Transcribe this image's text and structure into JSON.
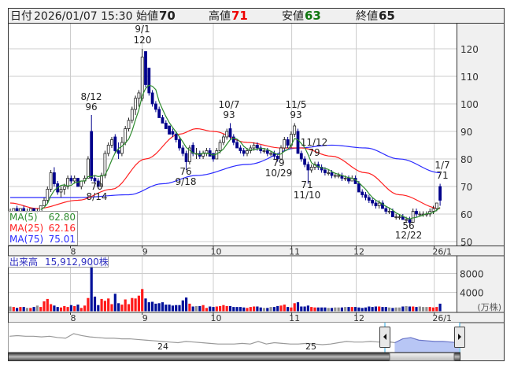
{
  "header": {
    "date_label": "日付",
    "datetime": "2026/01/07 15:30",
    "open_label": "始値",
    "open": "70",
    "high_label": "高値",
    "high": "71",
    "low_label": "安値",
    "low": "63",
    "close_label": "終値",
    "close": "65"
  },
  "colors": {
    "up_candle_fill": "#ffffff",
    "down_candle": "#00008b",
    "ma5": "#2e8b2e",
    "ma25": "#ff2020",
    "ma75": "#2a2aff",
    "volume_up": "#ff1a1a",
    "volume_down": "#00109a",
    "volume_flat": "#909090",
    "high_value": "#ee0000",
    "low_value": "#117711",
    "panel_bg": "#f0f0f0",
    "grid": "#cccccc"
  },
  "ma_legend": [
    {
      "label": "MA(5)",
      "value": "62.80"
    },
    {
      "label": "MA(25)",
      "value": "62.16"
    },
    {
      "label": "MA(75)",
      "value": "75.01"
    }
  ],
  "volume_panel": {
    "label": "出来高",
    "value": "15,912,900株",
    "unit": "(万株)"
  },
  "chart_data": {
    "type": "candlestick",
    "price_axis": {
      "ticks": [
        "120",
        "110",
        "100",
        "90",
        "80",
        "70",
        "60",
        "50"
      ],
      "range": [
        50,
        124
      ]
    },
    "date_axis": {
      "ticks": [
        "8",
        "9",
        "10",
        "11",
        "12",
        "26/1"
      ]
    },
    "volume_axis": {
      "ticks": [
        "8000",
        "4000"
      ],
      "range": [
        0,
        11500
      ],
      "unit": "万株"
    },
    "annotations": [
      {
        "date": "9/1",
        "value": "120",
        "kind": "high"
      },
      {
        "date": "8/12",
        "value": "96",
        "kind": "high"
      },
      {
        "date": "10/7",
        "value": "93",
        "kind": "high"
      },
      {
        "date": "11/5",
        "value": "93",
        "kind": "high"
      },
      {
        "date": "11/12",
        "value": "79",
        "kind": "high"
      },
      {
        "date": "1/7",
        "value": "71",
        "kind": "high"
      },
      {
        "date": "8/14",
        "value": "70",
        "kind": "low"
      },
      {
        "date": "9/18",
        "value": "76",
        "kind": "low"
      },
      {
        "date": "10/29",
        "value": "79",
        "kind": "low"
      },
      {
        "date": "11/10",
        "value": "71",
        "kind": "low"
      },
      {
        "date": "12/22",
        "value": "56",
        "kind": "low"
      }
    ],
    "candles_ohlc": [
      [
        61,
        62,
        60,
        61
      ],
      [
        61,
        62,
        61,
        62
      ],
      [
        62,
        63,
        61,
        61
      ],
      [
        61,
        62,
        61,
        62
      ],
      [
        62,
        63,
        61,
        61
      ],
      [
        61,
        62,
        60,
        61
      ],
      [
        61,
        62,
        61,
        62
      ],
      [
        62,
        62,
        61,
        61
      ],
      [
        61,
        62,
        60,
        61
      ],
      [
        61,
        63,
        61,
        63
      ],
      [
        63,
        66,
        63,
        65
      ],
      [
        65,
        70,
        64,
        69
      ],
      [
        69,
        76,
        68,
        75
      ],
      [
        75,
        77,
        70,
        71
      ],
      [
        71,
        72,
        67,
        68
      ],
      [
        68,
        70,
        66,
        69
      ],
      [
        69,
        71,
        67,
        70
      ],
      [
        70,
        74,
        69,
        73
      ],
      [
        73,
        74,
        71,
        72
      ],
      [
        72,
        74,
        71,
        73
      ],
      [
        73,
        73,
        70,
        70
      ],
      [
        70,
        72,
        69,
        72
      ],
      [
        72,
        74,
        71,
        73
      ],
      [
        73,
        81,
        73,
        80
      ],
      [
        90,
        96,
        72,
        73
      ],
      [
        73,
        74,
        71,
        72
      ],
      [
        72,
        73,
        70,
        70
      ],
      [
        70,
        75,
        70,
        74
      ],
      [
        74,
        83,
        73,
        82
      ],
      [
        82,
        86,
        81,
        85
      ],
      [
        85,
        88,
        84,
        87
      ],
      [
        88,
        89,
        82,
        83
      ],
      [
        83,
        86,
        80,
        82
      ],
      [
        82,
        88,
        81,
        86
      ],
      [
        86,
        92,
        85,
        91
      ],
      [
        91,
        95,
        90,
        94
      ],
      [
        94,
        99,
        93,
        98
      ],
      [
        98,
        103,
        96,
        102
      ],
      [
        102,
        105,
        99,
        104
      ],
      [
        102,
        120,
        101,
        117
      ],
      [
        119,
        119,
        106,
        107
      ],
      [
        113,
        113,
        103,
        104
      ],
      [
        104,
        105,
        99,
        100
      ],
      [
        100,
        101,
        97,
        98
      ],
      [
        98,
        99,
        95,
        95
      ],
      [
        95,
        96,
        93,
        93
      ],
      [
        93,
        94,
        91,
        91
      ],
      [
        92,
        92,
        89,
        89
      ],
      [
        90,
        91,
        88,
        89
      ],
      [
        89,
        90,
        86,
        87
      ],
      [
        87,
        88,
        83,
        84
      ],
      [
        84,
        85,
        81,
        82
      ],
      [
        82,
        83,
        76,
        79
      ],
      [
        79,
        85,
        78,
        84
      ],
      [
        85,
        86,
        81,
        82
      ],
      [
        82,
        84,
        80,
        82
      ],
      [
        82,
        83,
        80,
        81
      ],
      [
        81,
        83,
        80,
        82
      ],
      [
        82,
        84,
        81,
        83
      ],
      [
        83,
        84,
        81,
        81
      ],
      [
        82,
        82,
        79,
        80
      ],
      [
        80,
        84,
        80,
        83
      ],
      [
        83,
        87,
        82,
        86
      ],
      [
        86,
        89,
        85,
        88
      ],
      [
        88,
        91,
        87,
        90
      ],
      [
        91,
        93,
        87,
        88
      ],
      [
        88,
        89,
        85,
        86
      ],
      [
        86,
        87,
        84,
        84
      ],
      [
        84,
        85,
        82,
        83
      ],
      [
        83,
        84,
        81,
        82
      ],
      [
        82,
        84,
        81,
        83
      ],
      [
        83,
        85,
        82,
        84
      ],
      [
        84,
        86,
        83,
        85
      ],
      [
        85,
        86,
        83,
        84
      ],
      [
        84,
        85,
        82,
        83
      ],
      [
        83,
        84,
        82,
        83
      ],
      [
        83,
        84,
        81,
        82
      ],
      [
        82,
        83,
        81,
        82
      ],
      [
        82,
        83,
        80,
        81
      ],
      [
        81,
        82,
        79,
        80
      ],
      [
        80,
        85,
        80,
        84
      ],
      [
        84,
        88,
        83,
        87
      ],
      [
        87,
        88,
        84,
        85
      ],
      [
        85,
        90,
        84,
        89
      ],
      [
        89,
        93,
        88,
        92
      ],
      [
        90,
        91,
        82,
        82
      ],
      [
        82,
        83,
        79,
        80
      ],
      [
        80,
        81,
        77,
        78
      ],
      [
        78,
        79,
        71,
        76
      ],
      [
        76,
        78,
        75,
        77
      ],
      [
        77,
        79,
        76,
        78
      ],
      [
        78,
        79,
        76,
        77
      ],
      [
        77,
        78,
        75,
        76
      ],
      [
        76,
        77,
        74,
        75
      ],
      [
        75,
        76,
        74,
        75
      ],
      [
        75,
        76,
        73,
        74
      ],
      [
        74,
        75,
        73,
        74
      ],
      [
        74,
        75,
        73,
        74
      ],
      [
        74,
        75,
        72,
        73
      ],
      [
        73,
        74,
        72,
        73
      ],
      [
        73,
        74,
        71,
        72
      ],
      [
        72,
        74,
        72,
        73
      ],
      [
        73,
        74,
        71,
        71
      ],
      [
        71,
        72,
        68,
        68
      ],
      [
        68,
        69,
        66,
        67
      ],
      [
        67,
        68,
        65,
        66
      ],
      [
        66,
        67,
        64,
        65
      ],
      [
        65,
        66,
        63,
        64
      ],
      [
        64,
        65,
        62,
        63
      ],
      [
        63,
        65,
        62,
        64
      ],
      [
        64,
        65,
        62,
        62
      ],
      [
        62,
        63,
        60,
        61
      ],
      [
        61,
        62,
        60,
        61
      ],
      [
        61,
        62,
        59,
        59
      ],
      [
        59,
        60,
        58,
        59
      ],
      [
        59,
        60,
        58,
        59
      ],
      [
        59,
        60,
        58,
        58
      ],
      [
        58,
        59,
        57,
        58
      ],
      [
        58,
        59,
        56,
        57
      ],
      [
        57,
        62,
        57,
        61
      ],
      [
        61,
        62,
        59,
        60
      ],
      [
        60,
        61,
        59,
        60
      ],
      [
        60,
        61,
        59,
        60
      ],
      [
        60,
        61,
        59,
        60
      ],
      [
        60,
        62,
        59,
        61
      ],
      [
        61,
        63,
        60,
        62
      ],
      [
        62,
        64,
        61,
        64
      ],
      [
        70,
        71,
        63,
        65
      ]
    ],
    "ma25_points": [
      [
        0,
        64
      ],
      [
        8,
        62
      ],
      [
        20,
        65
      ],
      [
        30,
        69
      ],
      [
        40,
        80
      ],
      [
        50,
        89
      ],
      [
        55,
        91
      ],
      [
        60,
        90
      ],
      [
        70,
        86
      ],
      [
        80,
        84
      ],
      [
        86,
        84
      ],
      [
        95,
        81
      ],
      [
        105,
        75
      ],
      [
        115,
        67
      ],
      [
        127,
        62
      ]
    ],
    "ma75_points": [
      [
        0,
        66
      ],
      [
        20,
        66
      ],
      [
        35,
        67
      ],
      [
        45,
        71
      ],
      [
        55,
        74
      ],
      [
        70,
        78
      ],
      [
        85,
        84
      ],
      [
        95,
        85
      ],
      [
        105,
        84
      ],
      [
        115,
        80
      ],
      [
        127,
        75
      ]
    ],
    "volume": [
      1000,
      900,
      700,
      900,
      900,
      700,
      700,
      900,
      1200,
      900,
      2100,
      2600,
      1500,
      1200,
      900,
      800,
      1100,
      900,
      1300,
      1100,
      1400,
      700,
      1200,
      2800,
      10000,
      3100,
      1300,
      2600,
      2200,
      2700,
      1500,
      3700,
      1700,
      1400,
      2500,
      1500,
      2800,
      2700,
      3300,
      4700,
      2700,
      1900,
      2000,
      1600,
      1700,
      1900,
      1400,
      1400,
      1200,
      1300,
      1300,
      2300,
      2900,
      1600,
      1000,
      1100,
      1100,
      1300,
      700,
      1000,
      900,
      1000,
      1100,
      1300,
      1100,
      1100,
      900,
      900,
      900,
      800,
      700,
      900,
      1000,
      1000,
      800,
      700,
      700,
      900,
      900,
      1100,
      1200,
      1400,
      900,
      800,
      1700,
      1900,
      1000,
      1000,
      1200,
      900,
      800,
      800,
      800,
      800,
      700,
      700,
      800,
      800,
      800,
      900,
      900,
      900,
      900,
      800,
      700,
      800,
      1000,
      900,
      1000,
      1000,
      900,
      900,
      800,
      700,
      800,
      800,
      1000,
      1100,
      1000,
      1000,
      900,
      1000,
      900,
      900,
      900,
      800,
      900,
      1600
    ]
  },
  "navigator": {
    "year_labels": [
      "24",
      "25"
    ],
    "series": [
      92,
      93,
      92,
      92,
      91,
      92,
      90,
      89,
      96,
      93,
      91,
      90,
      89,
      89,
      88,
      88,
      87,
      86,
      85,
      84,
      83,
      82,
      84,
      83,
      82,
      81,
      80,
      80,
      80,
      81,
      80,
      84,
      80,
      82,
      81,
      80,
      80,
      81,
      80,
      79,
      80,
      82,
      84,
      83,
      83,
      84,
      83,
      84,
      82,
      88,
      90,
      86,
      85,
      84,
      84,
      83,
      82
    ],
    "selected_fraction": [
      0.865,
      1.0
    ]
  }
}
